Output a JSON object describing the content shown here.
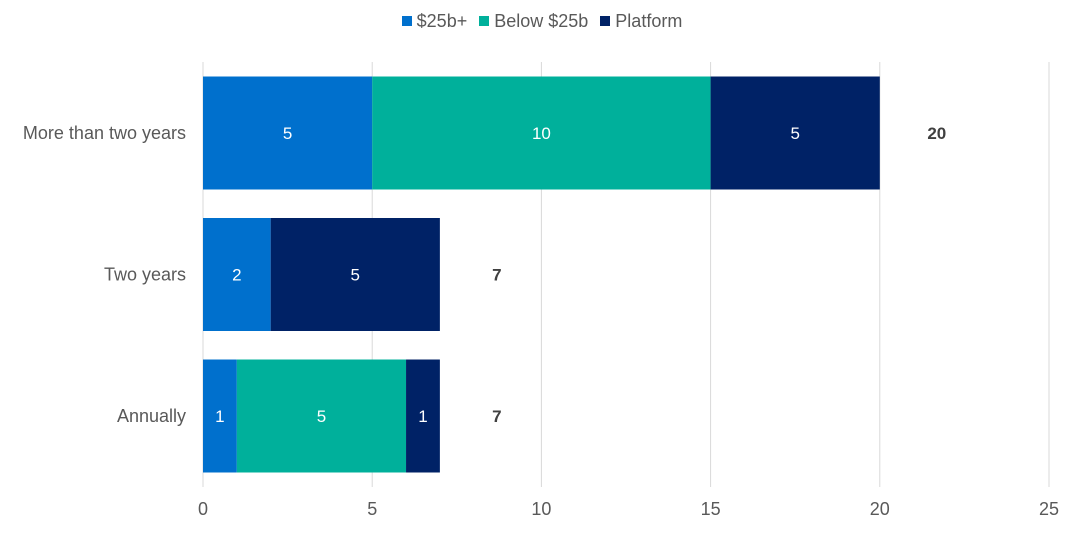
{
  "chart_data": {
    "type": "bar",
    "orientation": "horizontal",
    "stacked": true,
    "categories": [
      "More than two years",
      "Two years",
      "Annually"
    ],
    "series": [
      {
        "name": "$25b+",
        "color": "#0070CD",
        "values": [
          5,
          2,
          1
        ]
      },
      {
        "name": "Below $25b",
        "color": "#00B09B",
        "values": [
          10,
          0,
          5
        ]
      },
      {
        "name": "Platform",
        "color": "#002266",
        "values": [
          5,
          5,
          1
        ]
      }
    ],
    "totals": [
      20,
      7,
      7
    ],
    "xlim": [
      0,
      25
    ],
    "x_ticks": [
      0,
      5,
      10,
      15,
      20,
      25
    ],
    "grid": "vertical",
    "legend_position": "top-center"
  }
}
